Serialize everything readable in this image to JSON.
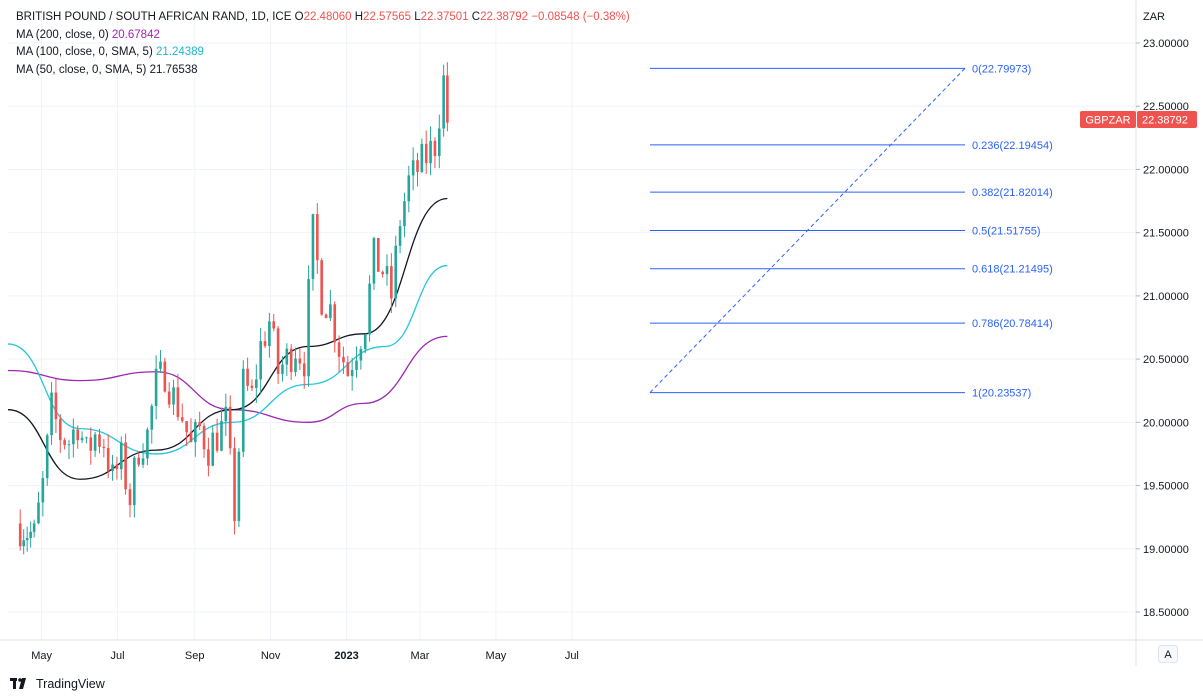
{
  "header": {
    "symbol": "BRITISH POUND / SOUTH AFRICAN RAND, 1D, ICE",
    "o_label": "O",
    "o_value": "22.48060",
    "h_label": "H",
    "h_value": "22.57565",
    "l_label": "L",
    "l_value": "22.37501",
    "c_label": "C",
    "c_value": "22.38792",
    "change": "−0.08548 (−0.38%)",
    "indicators": [
      {
        "label": "MA (200, close, 0)",
        "value": "20.67842",
        "color": "#9c27b0"
      },
      {
        "label": "MA (100, close, 0, SMA, 5)",
        "value": "21.24389",
        "color": "#26c6da"
      },
      {
        "label": "MA (50, close, 0, SMA, 5)",
        "value": "21.76538",
        "color": "#131722"
      }
    ]
  },
  "price_scale": {
    "currency": "ZAR",
    "ticks": [
      "23.00000",
      "22.50000",
      "22.00000",
      "21.50000",
      "21.00000",
      "20.50000",
      "20.00000",
      "19.50000",
      "19.00000",
      "18.50000"
    ],
    "current_label": "GBPZAR",
    "current_value": "22.38792",
    "current_color": "#ef5350"
  },
  "time_axis": {
    "labels": [
      "May",
      "Jul",
      "Sep",
      "Nov",
      "2023",
      "Mar",
      "May",
      "Jul"
    ]
  },
  "fibonacci": {
    "levels": [
      {
        "label": "0(22.79973)",
        "value": 22.79973
      },
      {
        "label": "0.236(22.19454)",
        "value": 22.19454
      },
      {
        "label": "0.382(21.82014)",
        "value": 21.82014
      },
      {
        "label": "0.5(21.51755)",
        "value": 21.51755
      },
      {
        "label": "0.618(21.21495)",
        "value": 21.21495
      },
      {
        "label": "0.786(20.78414)",
        "value": 20.78414
      },
      {
        "label": "1(20.23537)",
        "value": 20.23537
      }
    ],
    "color": "#2962ff"
  },
  "chart_data": {
    "type": "candlestick",
    "title": "BRITISH POUND / SOUTH AFRICAN RAND, 1D, ICE",
    "y_unit": "ZAR",
    "ylim": [
      18.3,
      23.2
    ],
    "grid": true,
    "up_color": "#26a69a",
    "down_color": "#ef5350",
    "series": [
      {
        "name": "GBPZAR",
        "points": [
          [
            "2022-04-11",
            19.2
          ],
          [
            "2022-04-25",
            19.1
          ],
          [
            "2022-05-02",
            19.5
          ],
          [
            "2022-05-09",
            20.1
          ],
          [
            "2022-05-16",
            19.9
          ],
          [
            "2022-05-23",
            19.85
          ],
          [
            "2022-05-30",
            20.0
          ],
          [
            "2022-06-06",
            19.75
          ],
          [
            "2022-06-13",
            19.9
          ],
          [
            "2022-06-20",
            19.85
          ],
          [
            "2022-06-27",
            19.55
          ],
          [
            "2022-07-04",
            19.7
          ],
          [
            "2022-07-11",
            19.4
          ],
          [
            "2022-07-18",
            19.8
          ],
          [
            "2022-07-25",
            19.9
          ],
          [
            "2022-08-01",
            20.3
          ],
          [
            "2022-08-08",
            20.4
          ],
          [
            "2022-08-15",
            20.2
          ],
          [
            "2022-08-22",
            20.05
          ],
          [
            "2022-08-29",
            19.8
          ],
          [
            "2022-09-05",
            19.95
          ],
          [
            "2022-09-12",
            19.8
          ],
          [
            "2022-09-19",
            19.9
          ],
          [
            "2022-09-26",
            20.0
          ],
          [
            "2022-10-03",
            19.3
          ],
          [
            "2022-10-10",
            20.3
          ],
          [
            "2022-10-17",
            20.2
          ],
          [
            "2022-10-24",
            20.6
          ],
          [
            "2022-10-31",
            20.8
          ],
          [
            "2022-11-07",
            20.4
          ],
          [
            "2022-11-14",
            20.5
          ],
          [
            "2022-11-21",
            20.6
          ],
          [
            "2022-11-28",
            20.5
          ],
          [
            "2022-12-05",
            21.5
          ],
          [
            "2022-12-12",
            21.0
          ],
          [
            "2022-12-19",
            20.9
          ],
          [
            "2022-12-26",
            20.6
          ],
          [
            "2023-01-02",
            20.4
          ],
          [
            "2023-01-09",
            20.6
          ],
          [
            "2023-01-16",
            20.8
          ],
          [
            "2023-01-23",
            21.3
          ],
          [
            "2023-01-30",
            21.2
          ],
          [
            "2023-02-06",
            21.0
          ],
          [
            "2023-02-13",
            21.6
          ],
          [
            "2023-02-20",
            21.9
          ],
          [
            "2023-02-27",
            22.0
          ],
          [
            "2023-03-06",
            22.1
          ],
          [
            "2023-03-13",
            22.2
          ],
          [
            "2023-03-20",
            22.7
          ],
          [
            "2023-03-23",
            22.38792
          ]
        ]
      },
      {
        "name": "MA (200, close, 0)",
        "points": [
          [
            "2022-04-04",
            20.41
          ],
          [
            "2022-06-01",
            20.33
          ],
          [
            "2022-08-01",
            20.4
          ],
          [
            "2022-10-01",
            20.1
          ],
          [
            "2022-12-01",
            20.0
          ],
          [
            "2023-01-15",
            20.15
          ],
          [
            "2023-03-23",
            20.68
          ]
        ]
      },
      {
        "name": "MA (100, close, 0, SMA, 5)",
        "points": [
          [
            "2022-04-04",
            20.62
          ],
          [
            "2022-06-01",
            19.95
          ],
          [
            "2022-08-01",
            19.75
          ],
          [
            "2022-10-01",
            20.0
          ],
          [
            "2022-12-01",
            20.3
          ],
          [
            "2023-02-01",
            20.6
          ],
          [
            "2023-03-23",
            21.24
          ]
        ]
      },
      {
        "name": "MA (50, close, 0, SMA, 5)",
        "points": [
          [
            "2022-04-04",
            20.1
          ],
          [
            "2022-06-01",
            19.55
          ],
          [
            "2022-08-01",
            19.78
          ],
          [
            "2022-10-01",
            20.1
          ],
          [
            "2022-12-01",
            20.6
          ],
          [
            "2023-01-15",
            20.7
          ],
          [
            "2023-03-23",
            21.77
          ]
        ]
      }
    ]
  }
}
